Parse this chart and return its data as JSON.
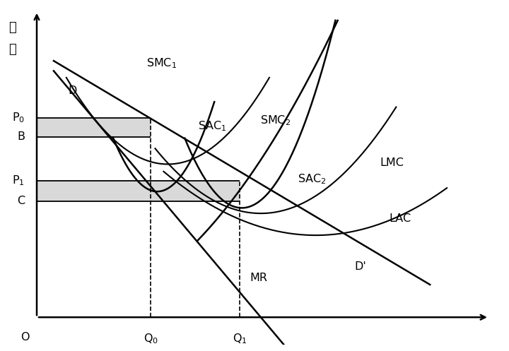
{
  "figsize": [
    7.2,
    4.97
  ],
  "dpi": 100,
  "bg_color": "#ffffff",
  "P0": 0.73,
  "B": 0.66,
  "P1": 0.5,
  "C": 0.425,
  "Q0": 0.27,
  "Q1": 0.48,
  "xlim": [
    0,
    1.05
  ],
  "ylim": [
    0,
    1.1
  ],
  "shaded_color": "#bbbbbb",
  "shaded_alpha": 0.55,
  "curve_lw": 1.8,
  "thin_lw": 1.5
}
